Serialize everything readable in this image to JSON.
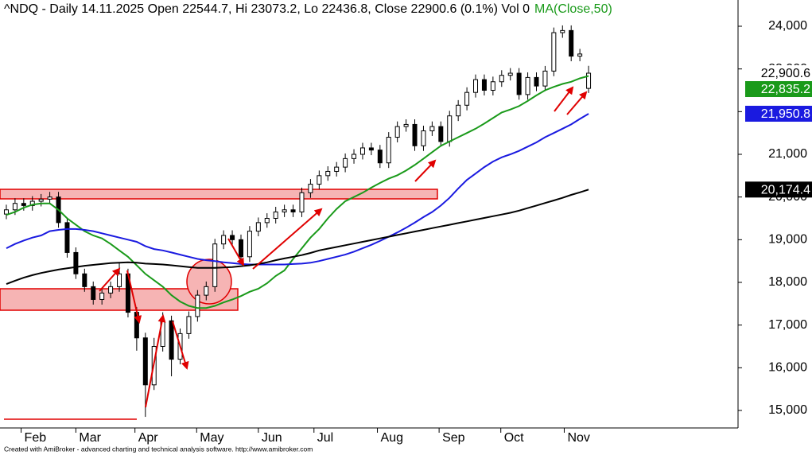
{
  "chart_data": {
    "type": "candlestick",
    "title": "^NDQ - Daily 14.11.2025 Open 22544.7, Hi 23073.2, Lo 22436.8, Close 22900.6 (0.1%) Vol 0",
    "ohlc": [
      [
        19600,
        19820,
        19480,
        19700
      ],
      [
        19700,
        19970,
        19580,
        19850
      ],
      [
        19850,
        19970,
        19680,
        19800
      ],
      [
        19800,
        20020,
        19680,
        19900
      ],
      [
        19900,
        20070,
        19780,
        19950
      ],
      [
        19950,
        20120,
        19830,
        20000
      ],
      [
        20000,
        20120,
        19280,
        19400
      ],
      [
        19400,
        19520,
        18580,
        18700
      ],
      [
        18700,
        18820,
        18080,
        18200
      ],
      [
        18200,
        18320,
        17780,
        17900
      ],
      [
        17900,
        18020,
        17480,
        17600
      ],
      [
        17600,
        17870,
        17480,
        17750
      ],
      [
        17750,
        18020,
        17630,
        17900
      ],
      [
        17900,
        18450,
        17780,
        18200
      ],
      [
        18200,
        18320,
        17180,
        17300
      ],
      [
        17300,
        17420,
        16400,
        16700
      ],
      [
        16700,
        16820,
        14850,
        15600
      ],
      [
        15600,
        16700,
        15480,
        16500
      ],
      [
        16500,
        17300,
        16380,
        17100
      ],
      [
        17100,
        17220,
        15800,
        16200
      ],
      [
        16200,
        16920,
        16080,
        16800
      ],
      [
        16800,
        17320,
        16680,
        17200
      ],
      [
        17200,
        17820,
        17080,
        17700
      ],
      [
        17700,
        18020,
        17580,
        17900
      ],
      [
        17900,
        19020,
        17780,
        18900
      ],
      [
        18900,
        19220,
        18780,
        19100
      ],
      [
        19100,
        19220,
        18880,
        19000
      ],
      [
        19000,
        19120,
        18480,
        18600
      ],
      [
        18600,
        19320,
        18480,
        19200
      ],
      [
        19200,
        19520,
        19080,
        19400
      ],
      [
        19400,
        19620,
        19280,
        19500
      ],
      [
        19500,
        19770,
        19380,
        19650
      ],
      [
        19650,
        19820,
        19530,
        19700
      ],
      [
        19700,
        19820,
        19530,
        19650
      ],
      [
        19650,
        20220,
        19530,
        20100
      ],
      [
        20100,
        20420,
        19980,
        20300
      ],
      [
        20300,
        20620,
        20180,
        20500
      ],
      [
        20500,
        20720,
        20380,
        20600
      ],
      [
        20600,
        20820,
        20480,
        20700
      ],
      [
        20700,
        21020,
        20580,
        20900
      ],
      [
        20900,
        21120,
        20780,
        21000
      ],
      [
        21000,
        21270,
        20880,
        21150
      ],
      [
        21150,
        21270,
        20980,
        21100
      ],
      [
        21100,
        21220,
        20680,
        20800
      ],
      [
        20800,
        21520,
        20680,
        21400
      ],
      [
        21400,
        21770,
        21280,
        21650
      ],
      [
        21650,
        21820,
        21530,
        21700
      ],
      [
        21700,
        21820,
        21080,
        21200
      ],
      [
        21200,
        21670,
        21080,
        21550
      ],
      [
        21550,
        21770,
        21430,
        21650
      ],
      [
        21650,
        21770,
        21180,
        21300
      ],
      [
        21300,
        22020,
        21180,
        21900
      ],
      [
        21900,
        22270,
        21780,
        22150
      ],
      [
        22150,
        22570,
        22030,
        22450
      ],
      [
        22450,
        22870,
        22330,
        22750
      ],
      [
        22750,
        22870,
        22380,
        22500
      ],
      [
        22500,
        22820,
        22380,
        22700
      ],
      [
        22700,
        22970,
        22580,
        22850
      ],
      [
        22850,
        23020,
        22730,
        22900
      ],
      [
        22900,
        23020,
        22280,
        22400
      ],
      [
        22400,
        22920,
        22280,
        22800
      ],
      [
        22800,
        22920,
        22480,
        22600
      ],
      [
        22600,
        23070,
        22480,
        22950
      ],
      [
        22950,
        23970,
        22830,
        23850
      ],
      [
        23850,
        24020,
        23730,
        23900
      ],
      [
        23900,
        24020,
        23180,
        23300
      ],
      [
        23300,
        23470,
        23180,
        23350
      ],
      [
        22544.7,
        23073.2,
        22436.8,
        22900.6
      ]
    ],
    "close_label": "22,900.6",
    "series": [
      {
        "name": "MA(Close,50)",
        "color": "#1a9a1a",
        "last_value_label": "22,835.2",
        "values": [
          19580,
          19650,
          19750,
          19820,
          19850,
          19850,
          19700,
          19500,
          19350,
          19200,
          19100,
          19030,
          18900,
          18750,
          18600,
          18400,
          18200,
          18050,
          17900,
          17700,
          17550,
          17450,
          17400,
          17400,
          17450,
          17530,
          17600,
          17680,
          17780,
          17850,
          17980,
          18150,
          18280,
          18550,
          18800,
          19050,
          19250,
          19500,
          19720,
          19900,
          20000,
          20100,
          20220,
          20330,
          20430,
          20510,
          20620,
          20750,
          20900,
          21050,
          21200,
          21300,
          21400,
          21500,
          21600,
          21720,
          21850,
          21980,
          22050,
          22130,
          22250,
          22380,
          22500,
          22580,
          22650,
          22700,
          22780,
          22835.2
        ]
      },
      {
        "color": "#1a1ae0",
        "last_value_label": "21,950.8",
        "values": [
          18800,
          18900,
          18980,
          19050,
          19100,
          19200,
          19230,
          19250,
          19250,
          19230,
          19200,
          19150,
          19100,
          19050,
          19000,
          18950,
          18850,
          18780,
          18750,
          18700,
          18650,
          18600,
          18550,
          18520,
          18500,
          18470,
          18450,
          18430,
          18420,
          18420,
          18420,
          18420,
          18420,
          18430,
          18440,
          18460,
          18500,
          18550,
          18600,
          18650,
          18720,
          18800,
          18880,
          18970,
          19070,
          19170,
          19280,
          19400,
          19530,
          19650,
          19800,
          19980,
          20200,
          20400,
          20550,
          20700,
          20830,
          20930,
          21000,
          21080,
          21180,
          21280,
          21400,
          21500,
          21600,
          21700,
          21830,
          21950.8
        ]
      },
      {
        "color": "#000000",
        "last_value_label": "20,174.4",
        "values": [
          17960,
          18040,
          18110,
          18170,
          18220,
          18260,
          18300,
          18330,
          18360,
          18390,
          18410,
          18430,
          18450,
          18460,
          18470,
          18460,
          18440,
          18430,
          18420,
          18400,
          18380,
          18360,
          18340,
          18340,
          18340,
          18350,
          18360,
          18380,
          18400,
          18430,
          18470,
          18520,
          18560,
          18600,
          18640,
          18690,
          18750,
          18790,
          18830,
          18870,
          18910,
          18950,
          18990,
          19030,
          19070,
          19110,
          19150,
          19190,
          19230,
          19270,
          19310,
          19350,
          19390,
          19430,
          19470,
          19510,
          19550,
          19590,
          19630,
          19680,
          19740,
          19800,
          19860,
          19920,
          19980,
          20050,
          20110,
          20174.4
        ]
      }
    ],
    "xlim": [
      -0.73,
      84.2
    ],
    "xticks": [
      {
        "value": 1.7,
        "label": "Feb"
      },
      {
        "value": 8.0,
        "label": "Mar"
      },
      {
        "value": 14.8,
        "label": "Apr"
      },
      {
        "value": 21.9,
        "label": "May"
      },
      {
        "value": 29.0,
        "label": "Jun"
      },
      {
        "value": 35.4,
        "label": "Jul"
      },
      {
        "value": 42.7,
        "label": "Aug"
      },
      {
        "value": 49.8,
        "label": "Sep"
      },
      {
        "value": 56.9,
        "label": "Oct"
      },
      {
        "value": 64.2,
        "label": "Nov"
      }
    ],
    "ylim": [
      14590,
      24615
    ],
    "yticks": [
      {
        "value": 15000,
        "label": "15,000"
      },
      {
        "value": 16000,
        "label": "16,000"
      },
      {
        "value": 17000,
        "label": "17,000"
      },
      {
        "value": 18000,
        "label": "18,000"
      },
      {
        "value": 19000,
        "label": "19,000"
      },
      {
        "value": 20000,
        "label": "20,000"
      },
      {
        "value": 21000,
        "label": "21,000"
      },
      {
        "value": 22000,
        "label": "22,000"
      },
      {
        "value": 23000,
        "label": "23,000"
      },
      {
        "value": 24000,
        "label": "24,000"
      }
    ]
  },
  "footer": "Created with AmiBroker - advanced charting and technical analysis software. http://www.amibroker.com"
}
